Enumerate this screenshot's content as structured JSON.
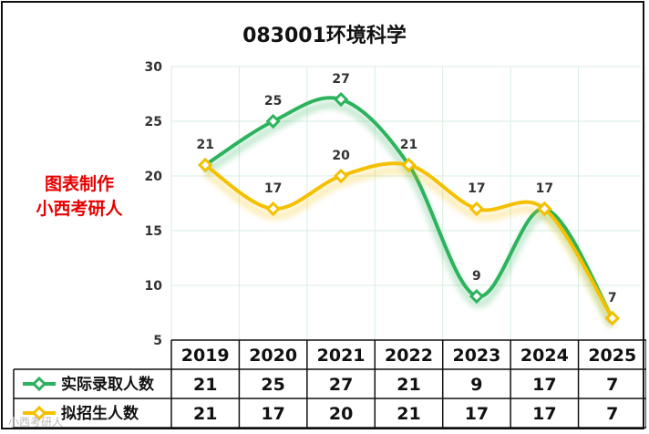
{
  "chart_data": {
    "type": "line",
    "title": "083001环境科学",
    "categories": [
      "2019",
      "2020",
      "2021",
      "2022",
      "2023",
      "2024",
      "2025"
    ],
    "ylim": [
      5,
      30
    ],
    "yticks": [
      5,
      10,
      15,
      20,
      25,
      30
    ],
    "grid": true,
    "series": [
      {
        "name": "实际录取人数",
        "values": [
          21,
          25,
          27,
          21,
          9,
          17,
          7
        ],
        "color": "#2db35d"
      },
      {
        "name": "拟招生人数",
        "values": [
          21,
          17,
          20,
          21,
          17,
          17,
          7
        ],
        "color": "#f5c000"
      }
    ],
    "data_table": true
  },
  "watermark": {
    "line1": "图表制作",
    "line2": "小西考研人",
    "color": "#e60000"
  },
  "corner_mark": "小西考研人"
}
